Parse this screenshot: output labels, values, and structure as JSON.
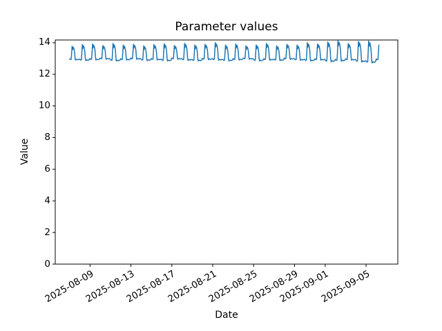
{
  "figure": {
    "background": "#ffffff",
    "text_color": "#000000",
    "frame_color": "#000000"
  },
  "chart_data": {
    "type": "line",
    "title": "Parameter values",
    "xlabel": "Date",
    "ylabel": "Value",
    "grid": false,
    "legend": false,
    "x_axis": {
      "start_date": "2025-08-07",
      "xlim_days_rel_start": [
        -1.4,
        32.1
      ],
      "tick_rotation_deg": 30,
      "ticks": [
        {
          "day": 2,
          "label": "2025-08-09"
        },
        {
          "day": 6,
          "label": "2025-08-13"
        },
        {
          "day": 10,
          "label": "2025-08-17"
        },
        {
          "day": 14,
          "label": "2025-08-21"
        },
        {
          "day": 18,
          "label": "2025-08-25"
        },
        {
          "day": 22,
          "label": "2025-08-29"
        },
        {
          "day": 25,
          "label": "2025-09-01"
        },
        {
          "day": 29,
          "label": "2025-09-05"
        }
      ]
    },
    "y_axis": {
      "ylim": [
        0,
        14.17
      ],
      "ticks": [
        0,
        2,
        4,
        6,
        8,
        10,
        12,
        14
      ]
    },
    "series": [
      {
        "name": "parameter-values",
        "color": "#1f77b4",
        "line_width": 1.5,
        "pattern": "daily-pulse",
        "start_date": "2025-08-07",
        "end_day": 30.25,
        "base": [
          12.95,
          12.92,
          12.96,
          13.0,
          12.9,
          12.95,
          13.0,
          12.92,
          12.96,
          12.9,
          13.0,
          12.94,
          12.9,
          12.98,
          12.95,
          12.9,
          12.96,
          13.0,
          12.9,
          12.95,
          12.92,
          13.0,
          12.94,
          12.9,
          12.95,
          12.86,
          12.9,
          12.95,
          12.85,
          12.8,
          12.94
        ],
        "peak": [
          13.78,
          13.88,
          13.92,
          13.82,
          13.95,
          13.85,
          13.9,
          13.8,
          13.88,
          13.93,
          13.82,
          13.96,
          13.86,
          13.9,
          14.0,
          13.85,
          13.92,
          13.8,
          13.86,
          13.95,
          13.8,
          13.9,
          13.85,
          14.0,
          13.92,
          14.05,
          14.12,
          13.95,
          14.08,
          14.1,
          13.85
        ],
        "day_profile": [
          [
            0.0,
            0.04
          ],
          [
            0.08,
            -0.02
          ],
          [
            0.16,
            0.0
          ],
          [
            0.2,
            0.45
          ],
          [
            0.25,
            1.0
          ],
          [
            0.3,
            0.74
          ],
          [
            0.36,
            0.92
          ],
          [
            0.43,
            0.8
          ],
          [
            0.49,
            0.55
          ],
          [
            0.54,
            0.08
          ],
          [
            0.58,
            -0.06
          ],
          [
            0.68,
            0.0
          ],
          [
            0.8,
            -0.04
          ],
          [
            0.92,
            0.0
          ]
        ]
      }
    ]
  }
}
